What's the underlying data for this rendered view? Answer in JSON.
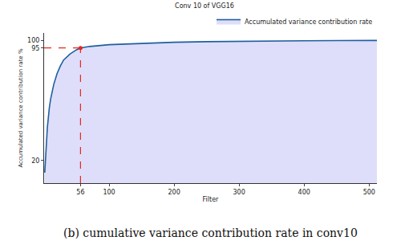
{
  "chart_data": {
    "type": "area",
    "title": "Conv 10 of VGG16",
    "caption": "(b) cumulative variance contribution rate in conv10",
    "x_label": "Filter",
    "y_label": "Accumulated variance contribution rate %",
    "x": [
      1,
      3,
      5,
      8,
      10,
      15,
      20,
      25,
      30,
      40,
      50,
      56,
      70,
      100,
      150,
      200,
      250,
      300,
      350,
      400,
      450,
      512
    ],
    "series": [
      {
        "name": "Accumulated variance contribution rate",
        "color": "#1f5f9e",
        "values": [
          12,
          30,
          42,
          55,
          61,
          71,
          78,
          83,
          87,
          91,
          93.8,
          95,
          96,
          97.2,
          98.2,
          98.8,
          99.2,
          99.5,
          99.7,
          99.8,
          99.9,
          100
        ]
      }
    ],
    "reference_point": {
      "x": 56,
      "y": 95,
      "color": "#e8281e",
      "line_style": "dash"
    },
    "xlim": [
      0,
      512
    ],
    "ylim": [
      5,
      105
    ],
    "xticks": [
      56,
      100,
      200,
      300,
      400,
      500
    ],
    "yticks": [
      20,
      95,
      100
    ],
    "grid": false,
    "legend": "upper right"
  }
}
